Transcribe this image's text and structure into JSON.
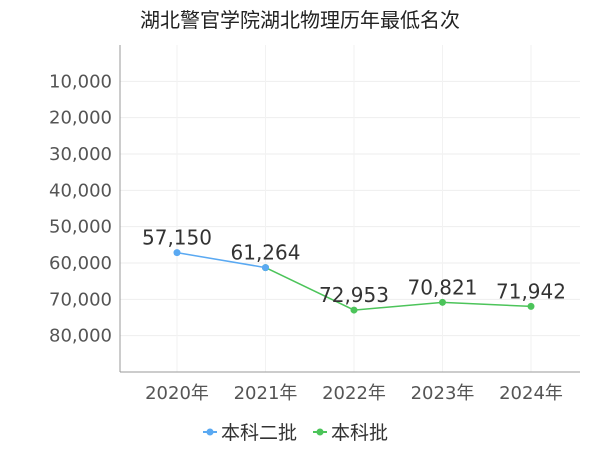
{
  "chart_data": {
    "type": "line",
    "title": "湖北警官学院湖北物理历年最低名次",
    "categories": [
      "2020年",
      "2021年",
      "2022年",
      "2023年",
      "2024年"
    ],
    "ylim": [
      0,
      90000
    ],
    "y_inverted": true,
    "y_ticks": [
      10000,
      20000,
      30000,
      40000,
      50000,
      60000,
      70000,
      80000
    ],
    "y_tick_labels": [
      "10,000",
      "20,000",
      "30,000",
      "40,000",
      "50,000",
      "60,000",
      "70,000",
      "80,000"
    ],
    "grid": true,
    "legend_position": "bottom",
    "series": [
      {
        "name": "本科二批",
        "color": "#5aa9f2",
        "values": [
          57150,
          61264,
          null,
          null,
          null
        ],
        "labels": [
          "57,150",
          "",
          "",
          "",
          ""
        ]
      },
      {
        "name": "本科批",
        "color": "#4cc45a",
        "values": [
          null,
          61264,
          72953,
          70821,
          71942
        ],
        "labels": [
          "",
          "61,264",
          "72,953",
          "70,821",
          "71,942"
        ]
      }
    ]
  }
}
